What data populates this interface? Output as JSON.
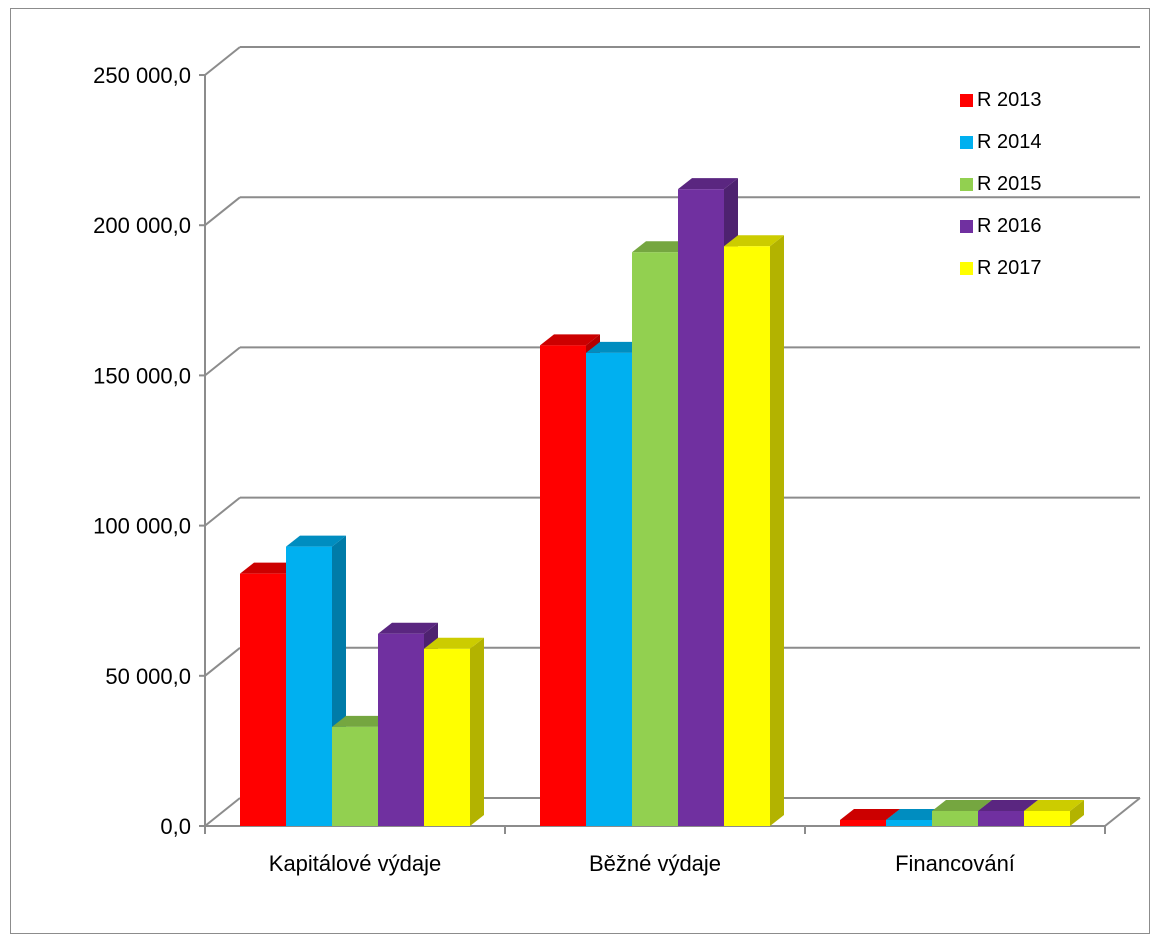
{
  "chart_data": {
    "type": "bar",
    "categories": [
      "Kapitálové výdaje",
      "Běžné výdaje",
      "Financování"
    ],
    "series": [
      {
        "name": "R 2013",
        "color": "#ff0000",
        "values": [
          84000,
          160000,
          2000
        ]
      },
      {
        "name": "R 2014",
        "color": "#00b0f0",
        "values": [
          93000,
          157500,
          2000
        ]
      },
      {
        "name": "R 2015",
        "color": "#92d050",
        "values": [
          33000,
          191000,
          5000
        ]
      },
      {
        "name": "R 2016",
        "color": "#7030a0",
        "values": [
          64000,
          212000,
          5000
        ]
      },
      {
        "name": "R 2017",
        "color": "#ffff00",
        "values": [
          59000,
          193000,
          5000
        ]
      }
    ],
    "yticks": [
      "0,0",
      "50 000,0",
      "100 000,0",
      "150 000,0",
      "200 000,0",
      "250 000,0"
    ],
    "ylim": [
      0,
      250000
    ],
    "grid": true,
    "legend_position": "top-right",
    "three_d": true
  }
}
